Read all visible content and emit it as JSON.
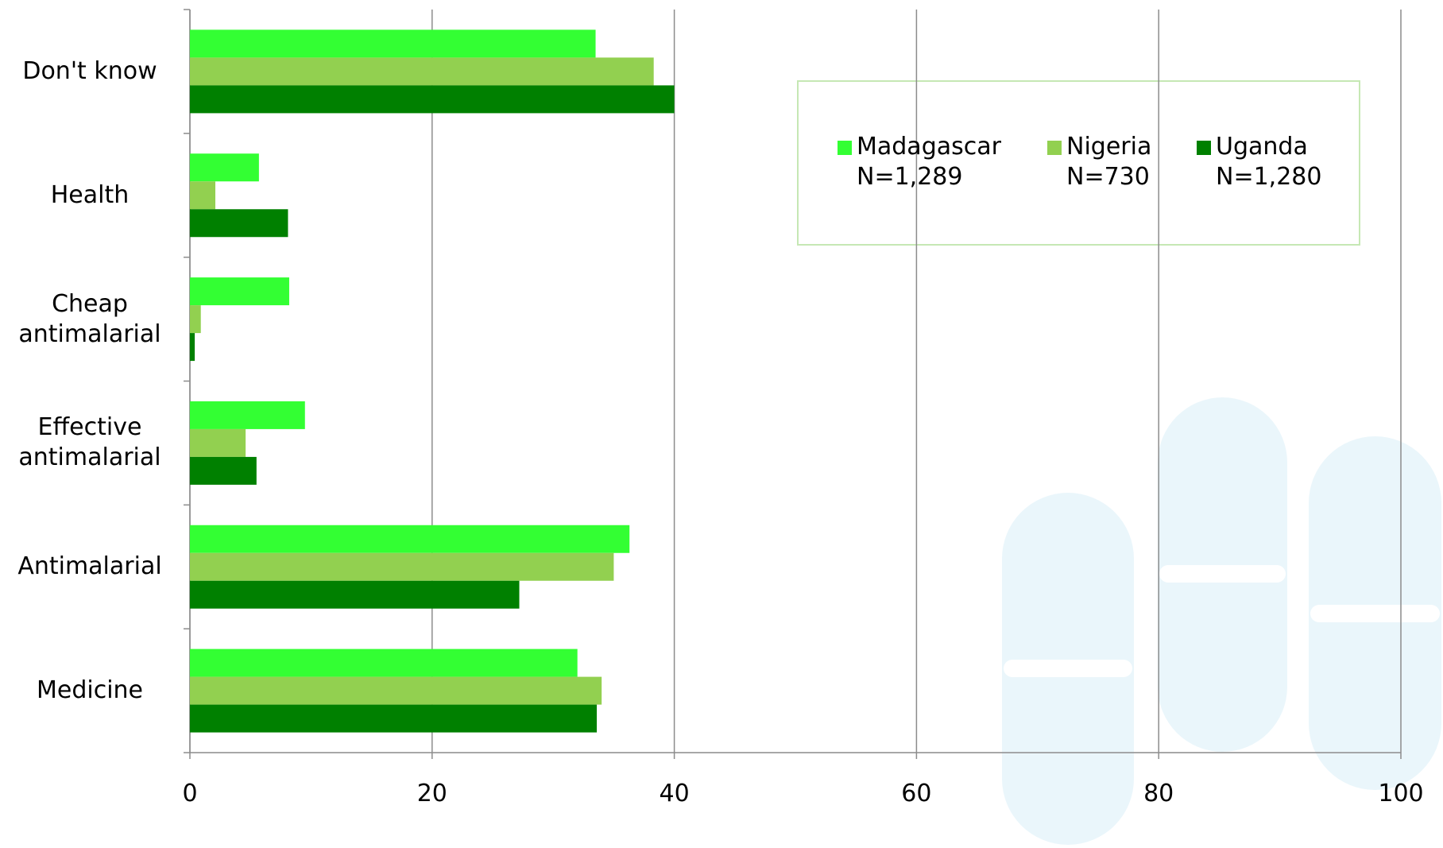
{
  "chart_data": {
    "type": "hbar",
    "categories": [
      "Don't know",
      "Health",
      "Cheap antimalarial",
      "Effective antimalarial",
      "Antimalarial",
      "Medicine"
    ],
    "series": [
      {
        "name": "Madagascar N=1,289",
        "color": "#33ff33",
        "values": [
          33.5,
          5.7,
          8.2,
          9.5,
          36.3,
          32.0
        ]
      },
      {
        "name": "Nigeria N=730",
        "color": "#92d050",
        "values": [
          38.3,
          2.1,
          0.9,
          4.6,
          35.0,
          34.0
        ]
      },
      {
        "name": "Uganda N=1,280",
        "color": "#008000",
        "values": [
          40.0,
          8.1,
          0.4,
          5.5,
          27.2,
          33.6
        ]
      }
    ],
    "xlim": [
      0,
      100
    ],
    "xticks": [
      0,
      20,
      40,
      60,
      80,
      100
    ],
    "grid": true
  }
}
